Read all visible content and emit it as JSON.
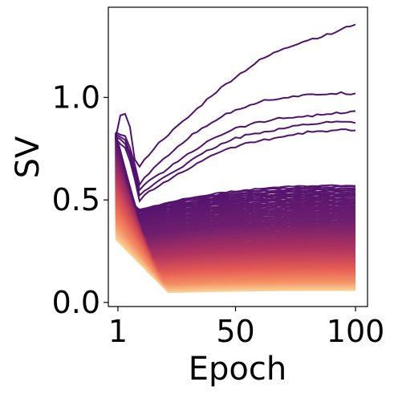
{
  "chart_data": {
    "type": "line",
    "title": "",
    "xlabel": "Epoch",
    "ylabel": "SV",
    "xlim": [
      -3,
      105
    ],
    "ylim": [
      -0.02,
      1.44
    ],
    "xticks": [
      1,
      50,
      100
    ],
    "xtick_labels": [
      "1",
      "50",
      "100"
    ],
    "yticks": [
      0.0,
      0.5,
      1.0
    ],
    "ytick_labels": [
      "0.0",
      "0.5",
      "1.0"
    ],
    "grid": false,
    "legend": "none",
    "colormap": "magma (dark purple for the largest singular values, light orange for the smallest)",
    "series_count": 128,
    "series_note": "one line per singular value, sorted from largest to smallest",
    "highlighted_series": [
      {
        "rank": 1,
        "x": [
          0,
          1,
          3,
          5,
          8,
          10,
          15,
          20,
          30,
          40,
          50,
          60,
          70,
          80,
          90,
          100
        ],
        "y": [
          0.8,
          0.91,
          0.92,
          0.93,
          0.7,
          0.66,
          0.74,
          0.8,
          0.9,
          1.01,
          1.1,
          1.18,
          1.24,
          1.28,
          1.31,
          1.36
        ]
      },
      {
        "rank": 2,
        "x": [
          0,
          5,
          10,
          15,
          20,
          30,
          40,
          50,
          60,
          70,
          80,
          90,
          100
        ],
        "y": [
          0.83,
          0.8,
          0.58,
          0.64,
          0.7,
          0.8,
          0.88,
          0.94,
          0.98,
          1.0,
          1.01,
          1.02,
          1.02
        ]
      },
      {
        "rank": 3,
        "x": [
          0,
          5,
          10,
          15,
          20,
          30,
          40,
          50,
          60,
          70,
          80,
          90,
          100
        ],
        "y": [
          0.82,
          0.78,
          0.55,
          0.6,
          0.64,
          0.72,
          0.8,
          0.85,
          0.88,
          0.9,
          0.91,
          0.92,
          0.93
        ]
      },
      {
        "rank": 4,
        "x": [
          0,
          5,
          10,
          15,
          20,
          30,
          40,
          50,
          60,
          70,
          80,
          90,
          100
        ],
        "y": [
          0.81,
          0.76,
          0.52,
          0.57,
          0.61,
          0.68,
          0.75,
          0.8,
          0.83,
          0.85,
          0.87,
          0.88,
          0.88
        ]
      },
      {
        "rank": 5,
        "x": [
          0,
          5,
          10,
          15,
          20,
          30,
          40,
          50,
          60,
          70,
          80,
          90,
          100
        ],
        "y": [
          0.8,
          0.74,
          0.5,
          0.55,
          0.58,
          0.65,
          0.72,
          0.76,
          0.79,
          0.81,
          0.83,
          0.84,
          0.84
        ]
      }
    ],
    "envelope": {
      "upper_start": 0.83,
      "upper_dip": 0.47,
      "upper_end": 0.62,
      "lower_start": 0.31,
      "lower_min": 0.05,
      "lower_end": 0.06
    }
  }
}
